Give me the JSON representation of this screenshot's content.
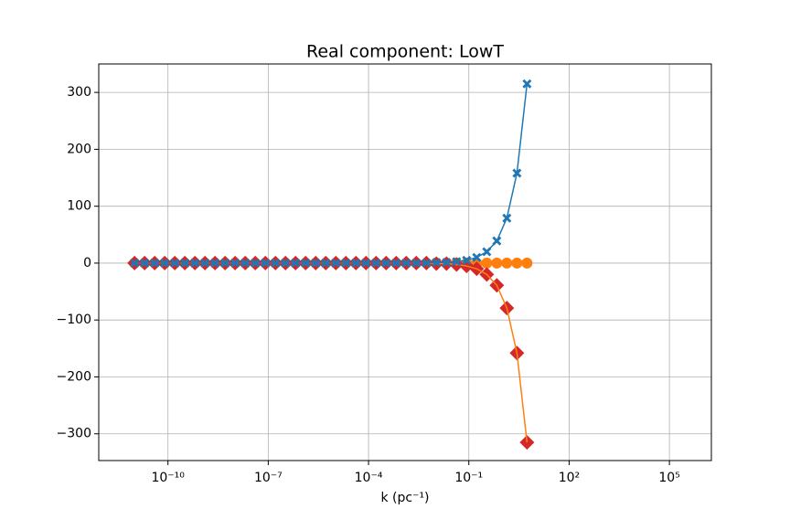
{
  "chart_data": {
    "type": "line",
    "title": "Real component: LowT",
    "x_label": "k (pc⁻¹)",
    "x": [
      1e-11,
      2e-11,
      4e-11,
      8e-11,
      1.6e-10,
      3.2e-10,
      6.4e-10,
      1.28e-09,
      2.56e-09,
      5.12e-09,
      1.02e-08,
      2.05e-08,
      4.1e-08,
      8.19e-08,
      1.64e-07,
      3.28e-07,
      6.55e-07,
      1.31e-06,
      2.62e-06,
      5.24e-06,
      1.05e-05,
      2.1e-05,
      4.19e-05,
      8.39e-05,
      0.000168,
      0.000336,
      0.000671,
      0.00134,
      0.00268,
      0.00537,
      0.0107,
      0.0215,
      0.0429,
      0.0859,
      0.172,
      0.344,
      0.687,
      1.37,
      2.75,
      5.5
    ],
    "series": [
      {
        "color": "#ff7f0e",
        "marker": "circle",
        "line": false,
        "values": [
          0,
          0,
          0,
          0,
          0,
          0,
          0,
          0,
          0,
          0,
          0,
          0,
          0,
          0,
          0,
          0,
          0,
          0,
          0,
          0,
          0,
          0,
          0,
          0,
          0,
          0,
          0,
          0,
          0,
          0,
          0,
          0,
          0,
          0,
          0,
          0,
          0,
          0,
          0,
          0
        ]
      },
      {
        "color": "#d62728",
        "line_color": "#ff7f0e",
        "marker": "diamond",
        "line": true,
        "values": [
          0,
          0,
          0,
          0,
          0,
          0,
          0,
          0,
          0,
          0,
          0,
          0,
          0,
          0,
          0,
          0,
          0,
          0,
          0,
          0,
          0,
          0,
          0,
          0,
          0,
          0,
          0,
          0,
          0,
          0,
          -1,
          -1,
          -2.5,
          -5,
          -10,
          -20,
          -39,
          -79,
          -158,
          -315
        ]
      },
      {
        "color": "#1f77b4",
        "marker": "x",
        "line": true,
        "values": [
          0,
          0,
          0,
          0,
          0,
          0,
          0,
          0,
          0,
          0,
          0,
          0,
          0,
          0,
          0,
          0,
          0,
          0,
          0,
          0,
          0,
          0,
          0,
          0,
          0,
          0,
          0,
          0,
          0,
          0,
          1,
          1,
          2.5,
          5,
          10,
          20,
          39,
          79,
          158,
          315
        ]
      }
    ],
    "xlog": true,
    "xlim": [
      8.5e-13,
      1800000.0
    ],
    "xticks": [
      {
        "value": 1e-10,
        "label": "10⁻¹⁰"
      },
      {
        "value": 1e-07,
        "label": "10⁻⁷"
      },
      {
        "value": 0.0001,
        "label": "10⁻⁴"
      },
      {
        "value": 0.1,
        "label": "10⁻¹"
      },
      {
        "value": 100,
        "label": "10²"
      },
      {
        "value": 100000,
        "label": "10⁵"
      }
    ],
    "ylim": [
      -347,
      350
    ],
    "yticks": [
      {
        "value": -300,
        "label": "−300"
      },
      {
        "value": -200,
        "label": "−200"
      },
      {
        "value": -100,
        "label": "−100"
      },
      0,
      100,
      200,
      300
    ],
    "grid": true
  }
}
